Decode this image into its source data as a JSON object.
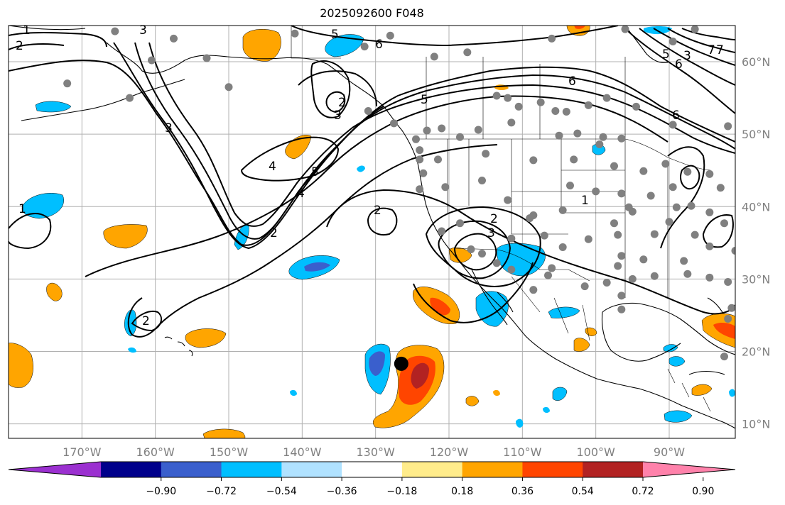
{
  "title": "2025092600 F048",
  "map": {
    "projection": "lat-lon",
    "lon_range": [
      -180,
      -81
    ],
    "lat_range": [
      8,
      65
    ],
    "lon_ticks": [
      {
        "value": -170,
        "label": "170°W"
      },
      {
        "value": -160,
        "label": "160°W"
      },
      {
        "value": -150,
        "label": "150°W"
      },
      {
        "value": -140,
        "label": "140°W"
      },
      {
        "value": -130,
        "label": "130°W"
      },
      {
        "value": -120,
        "label": "120°W"
      },
      {
        "value": -110,
        "label": "110°W"
      },
      {
        "value": -100,
        "label": "100°W"
      },
      {
        "value": -90,
        "label": "90°W"
      }
    ],
    "lat_ticks": [
      {
        "value": 10,
        "label": "10°N"
      },
      {
        "value": 20,
        "label": "20°N"
      },
      {
        "value": 30,
        "label": "30°N"
      },
      {
        "value": 40,
        "label": "40°N"
      },
      {
        "value": 50,
        "label": "50°N"
      },
      {
        "value": 60,
        "label": "60°N"
      }
    ],
    "grid": true,
    "contour_labels": [
      "1",
      "2",
      "3",
      "4",
      "5",
      "6",
      "7"
    ],
    "storm_marker": {
      "lon": -126.5,
      "lat": 18.3,
      "color": "#000000"
    },
    "station_color": "#808080"
  },
  "colorbar": {
    "colors": [
      "#9b30d0",
      "#00008b",
      "#3a5fcd",
      "#00bfff",
      "#b0e2ff",
      "#ffffff",
      "#ffec8b",
      "#ffa500",
      "#ff4500",
      "#b22222",
      "#ff82ab"
    ],
    "tick_labels": [
      "−0.90",
      "−0.72",
      "−0.54",
      "−0.36",
      "−0.18",
      "0.18",
      "0.36",
      "0.54",
      "0.72",
      "0.90"
    ],
    "extend": "both"
  }
}
